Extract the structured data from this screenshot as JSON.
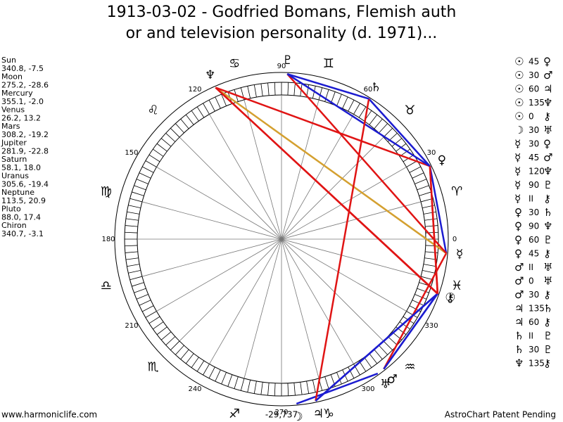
{
  "header": {
    "title_lines": [
      "1913-03-02 - Godfried Bomans, Flemish auth",
      "or and television personality (d. 1971)..."
    ]
  },
  "planets": [
    {
      "name": "Sun",
      "coords": "340.8, -7.5",
      "glyph": "☉"
    },
    {
      "name": "Moon",
      "coords": "275.2, -28.6",
      "glyph": "☽"
    },
    {
      "name": "Mercury",
      "coords": "355.1, -2.0",
      "glyph": "☿"
    },
    {
      "name": "Venus",
      "coords": "26.2, 13.2",
      "glyph": "♀"
    },
    {
      "name": "Mars",
      "coords": "308.2, -19.2",
      "glyph": "♂"
    },
    {
      "name": "Jupiter",
      "coords": "281.9, -22.8",
      "glyph": "♃"
    },
    {
      "name": "Saturn",
      "coords": "58.1, 18.0",
      "glyph": "♄"
    },
    {
      "name": "Uranus",
      "coords": "305.6, -19.4",
      "glyph": "♅"
    },
    {
      "name": "Neptune",
      "coords": "113.5, 20.9",
      "glyph": "♆"
    },
    {
      "name": "Pluto",
      "coords": "88.0, 17.4",
      "glyph": "♇"
    },
    {
      "name": "Chiron",
      "coords": "340.7, -3.1",
      "glyph": "⚷"
    }
  ],
  "aspects": [
    {
      "a": "☉",
      "angle": "45",
      "b": "♀"
    },
    {
      "a": "☉",
      "angle": "30",
      "b": "♂"
    },
    {
      "a": "☉",
      "angle": "60",
      "b": "♃"
    },
    {
      "a": "☉",
      "angle": "135",
      "b": "♆"
    },
    {
      "a": "☉",
      "angle": "0",
      "b": "⚷"
    },
    {
      "a": "☽",
      "angle": "30",
      "b": "♅"
    },
    {
      "a": "☿",
      "angle": "30",
      "b": "♀"
    },
    {
      "a": "☿",
      "angle": "45",
      "b": "♂"
    },
    {
      "a": "☿",
      "angle": "120",
      "b": "♆"
    },
    {
      "a": "☿",
      "angle": "90",
      "b": "♇"
    },
    {
      "a": "☿",
      "angle": "II",
      "b": "⚷"
    },
    {
      "a": "♀",
      "angle": "30",
      "b": "♄"
    },
    {
      "a": "♀",
      "angle": "90",
      "b": "♆"
    },
    {
      "a": "♀",
      "angle": "60",
      "b": "♇"
    },
    {
      "a": "♀",
      "angle": "45",
      "b": "⚷"
    },
    {
      "a": "♂",
      "angle": "II",
      "b": "♅"
    },
    {
      "a": "♂",
      "angle": "0",
      "b": "♅"
    },
    {
      "a": "♂",
      "angle": "30",
      "b": "⚷"
    },
    {
      "a": "♃",
      "angle": "135",
      "b": "♄"
    },
    {
      "a": "♃",
      "angle": "60",
      "b": "⚷"
    },
    {
      "a": "♄",
      "angle": "II",
      "b": "♇"
    },
    {
      "a": "♄",
      "angle": "30",
      "b": "♇"
    },
    {
      "a": "♆",
      "angle": "135",
      "b": "⚷"
    }
  ],
  "aspect_colors": {
    "30": "#1c1cd0",
    "45": "#e01414",
    "60": "#1c1cd0",
    "90": "#e01414",
    "120": "#d4a030",
    "135": "#e01414"
  },
  "wheel": {
    "degree_labels": [
      "0",
      "30",
      "60",
      "90",
      "120",
      "150",
      "180",
      "210",
      "240",
      "270",
      "300",
      "330"
    ],
    "signs": [
      "♈",
      "♉",
      "♊",
      "♋",
      "♌",
      "♍",
      "♎",
      "♏",
      "♐",
      "♑",
      "♒",
      "♓"
    ],
    "bottom_note": "-29,737"
  },
  "footer": {
    "left": "www.harmoniclife.com",
    "right": "AstroChart Patent Pending"
  }
}
